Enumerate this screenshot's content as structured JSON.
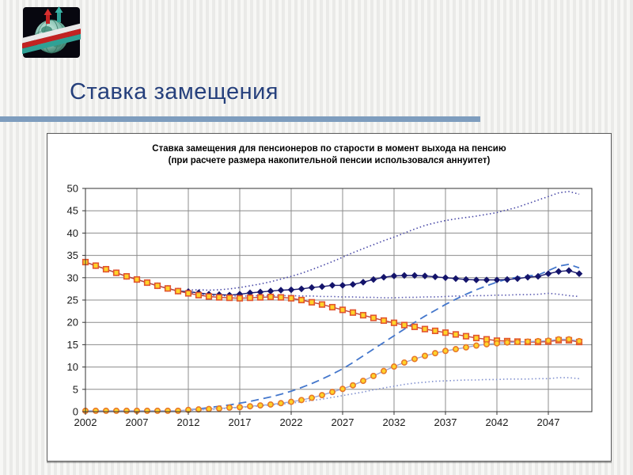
{
  "slide": {
    "title": "Ставка замещения",
    "title_color": "#26407C",
    "accent_bar_color": "#7E9DBE",
    "logo_icon": "globe-with-flags-logo"
  },
  "chart_data": {
    "type": "line",
    "title": "Ставка замещения для пенсионеров по старости в момент выхода на пенсию",
    "subtitle": "(при расчете размера накопительной пенсии использовался аннуитет)",
    "legend_position": "none",
    "grid": true,
    "x_start": 2002,
    "x_end": 2050,
    "xticks": [
      2002,
      2007,
      2012,
      2017,
      2022,
      2027,
      2032,
      2037,
      2042,
      2047
    ],
    "ylim": [
      0,
      50
    ],
    "ytick_step": 5,
    "yticks": [
      0,
      5,
      10,
      15,
      20,
      25,
      30,
      35,
      40,
      45,
      50
    ],
    "series": [
      {
        "name": "total-pension-diamond-navy",
        "marker": "diamond",
        "line": "solid",
        "layer": 5,
        "color": "#1B1B6F",
        "marker_fill": "#14146B",
        "marker_stroke": "#14146B",
        "values": [
          33.5,
          32.7,
          31.9,
          31.1,
          30.3,
          29.6,
          28.9,
          28.2,
          27.6,
          27.0,
          26.9,
          26.6,
          26.3,
          26.2,
          26.1,
          26.3,
          26.6,
          26.8,
          27.0,
          27.2,
          27.3,
          27.5,
          27.8,
          28.0,
          28.3,
          28.3,
          28.5,
          29.0,
          29.6,
          30.1,
          30.4,
          30.5,
          30.5,
          30.4,
          30.2,
          30.0,
          29.8,
          29.6,
          29.5,
          29.5,
          29.5,
          29.6,
          29.8,
          30.1,
          30.3,
          30.9,
          31.4,
          31.6,
          30.9
        ]
      },
      {
        "name": "insurance-part-square-yellow",
        "marker": "square",
        "line": "solid",
        "layer": 6,
        "color": "#C0443C",
        "marker_fill": "#FFD42A",
        "marker_stroke": "#E2542E",
        "values": [
          33.5,
          32.7,
          31.9,
          31.1,
          30.3,
          29.6,
          28.9,
          28.2,
          27.6,
          27.0,
          26.5,
          26.1,
          25.8,
          25.6,
          25.5,
          25.4,
          25.5,
          25.6,
          25.7,
          25.6,
          25.4,
          25.0,
          24.5,
          24.0,
          23.4,
          22.8,
          22.2,
          21.6,
          21.0,
          20.4,
          19.9,
          19.4,
          19.0,
          18.5,
          18.1,
          17.7,
          17.3,
          16.9,
          16.5,
          16.2,
          15.9,
          15.8,
          15.7,
          15.6,
          15.6,
          15.7,
          16.0,
          16.0,
          15.6
        ]
      },
      {
        "name": "funded-part-circle-yellow",
        "marker": "circle",
        "line": "solid",
        "layer": 7,
        "color": "#9DA7D9",
        "marker_fill": "#FFD42A",
        "marker_stroke": "#E8792A",
        "values": [
          0.2,
          0.2,
          0.2,
          0.2,
          0.2,
          0.2,
          0.2,
          0.2,
          0.2,
          0.2,
          0.4,
          0.5,
          0.6,
          0.7,
          0.9,
          1.0,
          1.2,
          1.4,
          1.6,
          1.9,
          2.2,
          2.6,
          3.1,
          3.7,
          4.4,
          5.1,
          5.9,
          6.9,
          8.0,
          9.1,
          10.1,
          11.0,
          11.8,
          12.5,
          13.1,
          13.6,
          14.0,
          14.4,
          14.8,
          15.1,
          15.3,
          15.5,
          15.6,
          15.7,
          15.8,
          15.9,
          16.2,
          16.2,
          15.8
        ]
      },
      {
        "name": "scenario-dashed-blue",
        "marker": "none",
        "line": "dashed",
        "layer": 4,
        "color": "#4477CC",
        "values": [
          null,
          null,
          null,
          null,
          null,
          null,
          null,
          null,
          null,
          null,
          0.4,
          0.6,
          0.9,
          1.2,
          1.5,
          1.9,
          2.3,
          2.8,
          3.3,
          3.9,
          4.6,
          5.4,
          6.3,
          7.3,
          8.4,
          9.6,
          11.0,
          12.5,
          14.0,
          15.5,
          17.0,
          18.5,
          20.0,
          21.4,
          22.7,
          24.0,
          25.2,
          26.3,
          27.3,
          28.2,
          29.0,
          29.7,
          30.1,
          30.4,
          30.6,
          31.6,
          32.6,
          33.0,
          32.2
        ]
      },
      {
        "name": "scenario-upper-dotted",
        "marker": "none",
        "line": "dotted",
        "layer": 3,
        "color": "#4747A6",
        "values": [
          null,
          null,
          null,
          null,
          null,
          null,
          null,
          null,
          null,
          null,
          27.2,
          27.3,
          27.2,
          27.3,
          27.5,
          27.8,
          28.2,
          28.6,
          29.1,
          29.7,
          30.3,
          31.0,
          31.8,
          32.7,
          33.6,
          34.6,
          35.6,
          36.5,
          37.4,
          38.3,
          39.1,
          40.0,
          40.9,
          41.7,
          42.3,
          42.8,
          43.2,
          43.5,
          43.8,
          44.2,
          44.6,
          45.2,
          45.8,
          46.6,
          47.4,
          48.2,
          49.0,
          49.3,
          48.7
        ]
      },
      {
        "name": "scenario-middle-dotted",
        "marker": "none",
        "line": "dotted",
        "layer": 2,
        "color": "#5B5BB0",
        "values": [
          null,
          null,
          null,
          null,
          null,
          null,
          null,
          null,
          null,
          null,
          26.5,
          26.3,
          26.1,
          26.0,
          25.9,
          25.9,
          25.9,
          26.0,
          26.0,
          26.0,
          26.0,
          25.9,
          25.9,
          25.8,
          25.8,
          25.7,
          25.7,
          25.6,
          25.6,
          25.5,
          25.5,
          25.6,
          25.6,
          25.7,
          25.7,
          25.8,
          25.9,
          25.9,
          26.0,
          26.0,
          26.1,
          26.1,
          26.2,
          26.2,
          26.3,
          26.5,
          26.3,
          26.0,
          25.8
        ]
      },
      {
        "name": "scenario-lower-dotted",
        "marker": "none",
        "line": "dotted",
        "layer": 1,
        "color": "#8090CF",
        "values": [
          null,
          null,
          null,
          null,
          null,
          null,
          null,
          null,
          null,
          null,
          0.3,
          0.4,
          0.5,
          0.6,
          0.8,
          0.9,
          1.1,
          1.3,
          1.5,
          1.7,
          1.9,
          2.2,
          2.5,
          2.8,
          3.2,
          3.6,
          4.0,
          4.4,
          4.9,
          5.3,
          5.7,
          6.1,
          6.4,
          6.6,
          6.8,
          6.9,
          7.0,
          7.1,
          7.1,
          7.2,
          7.2,
          7.3,
          7.3,
          7.3,
          7.4,
          7.4,
          7.6,
          7.6,
          7.4
        ]
      }
    ]
  }
}
